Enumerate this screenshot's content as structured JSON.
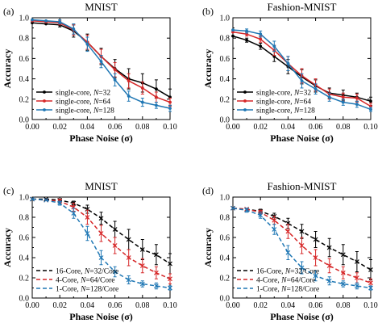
{
  "chart_data": [
    {
      "panel_label": "(a)",
      "title": "MNIST",
      "type": "line",
      "xlabel": "Phase Noise (σ)",
      "ylabel": "Accuracy",
      "xlim": [
        0.0,
        0.1
      ],
      "ylim": [
        0.0,
        1.0
      ],
      "xticks": [
        "0.00",
        "0.02",
        "0.04",
        "0.06",
        "0.08",
        "0.10"
      ],
      "yticks": [
        "0.0",
        "0.2",
        "0.4",
        "0.6",
        "0.8",
        "1.0"
      ],
      "grid": false,
      "legend_position": "bottom-left",
      "x": [
        0.0,
        0.01,
        0.02,
        0.03,
        0.04,
        0.05,
        0.06,
        0.07,
        0.08,
        0.09,
        0.1
      ],
      "series": [
        {
          "name": "single-core, N=32",
          "name_prefix": "single-core, ",
          "name_var": "N",
          "name_suffix": "=32",
          "color": "#000000",
          "dashed": false,
          "values": [
            0.95,
            0.94,
            0.93,
            0.87,
            0.76,
            0.62,
            0.5,
            0.4,
            0.36,
            0.3,
            0.22
          ],
          "errors": [
            0.01,
            0.01,
            0.02,
            0.06,
            0.08,
            0.08,
            0.09,
            0.1,
            0.09,
            0.09,
            0.08
          ]
        },
        {
          "name": "single-core, N=64",
          "name_prefix": "single-core, ",
          "name_var": "N",
          "name_suffix": "=64",
          "color": "#d62728",
          "dashed": false,
          "values": [
            0.97,
            0.96,
            0.95,
            0.88,
            0.76,
            0.62,
            0.49,
            0.38,
            0.31,
            0.22,
            0.17
          ],
          "errors": [
            0.01,
            0.01,
            0.02,
            0.05,
            0.07,
            0.07,
            0.07,
            0.07,
            0.06,
            0.05,
            0.04
          ]
        },
        {
          "name": "single-core, N=128",
          "name_prefix": "single-core, ",
          "name_var": "N",
          "name_suffix": "=128",
          "color": "#1f77b4",
          "dashed": false,
          "values": [
            0.98,
            0.97,
            0.96,
            0.89,
            0.74,
            0.57,
            0.39,
            0.23,
            0.17,
            0.14,
            0.11
          ],
          "errors": [
            0.01,
            0.01,
            0.02,
            0.05,
            0.07,
            0.06,
            0.06,
            0.05,
            0.04,
            0.03,
            0.03
          ]
        }
      ]
    },
    {
      "panel_label": "(b)",
      "title": "Fashion-MNIST",
      "type": "line",
      "xlabel": "Phase Noise (σ)",
      "ylabel": "Accuracy",
      "xlim": [
        0.0,
        0.1
      ],
      "ylim": [
        0.0,
        1.0
      ],
      "xticks": [
        "0.00",
        "0.02",
        "0.04",
        "0.06",
        "0.08",
        "0.10"
      ],
      "yticks": [
        "0.0",
        "0.2",
        "0.4",
        "0.6",
        "0.8",
        "1.0"
      ],
      "grid": false,
      "legend_position": "bottom-left",
      "x": [
        0.0,
        0.01,
        0.02,
        0.03,
        0.04,
        0.05,
        0.06,
        0.07,
        0.08,
        0.09,
        0.1
      ],
      "series": [
        {
          "name": "single-core, N=32",
          "name_prefix": "single-core, ",
          "name_var": "N",
          "name_suffix": "=32",
          "color": "#000000",
          "dashed": false,
          "values": [
            0.82,
            0.78,
            0.72,
            0.62,
            0.52,
            0.42,
            0.33,
            0.26,
            0.24,
            0.22,
            0.18
          ],
          "errors": [
            0.01,
            0.02,
            0.03,
            0.05,
            0.07,
            0.07,
            0.06,
            0.05,
            0.05,
            0.04,
            0.04
          ]
        },
        {
          "name": "single-core, N=64",
          "name_prefix": "single-core, ",
          "name_var": "N",
          "name_suffix": "=64",
          "color": "#d62728",
          "dashed": false,
          "values": [
            0.86,
            0.84,
            0.79,
            0.68,
            0.55,
            0.43,
            0.34,
            0.25,
            0.22,
            0.21,
            0.13
          ],
          "errors": [
            0.01,
            0.02,
            0.03,
            0.05,
            0.07,
            0.07,
            0.06,
            0.05,
            0.04,
            0.04,
            0.03
          ]
        },
        {
          "name": "single-core, N=128",
          "name_prefix": "single-core, ",
          "name_var": "N",
          "name_suffix": "=128",
          "color": "#1f77b4",
          "dashed": false,
          "values": [
            0.88,
            0.87,
            0.84,
            0.72,
            0.55,
            0.38,
            0.3,
            0.22,
            0.17,
            0.15,
            0.1
          ],
          "errors": [
            0.01,
            0.02,
            0.03,
            0.05,
            0.07,
            0.07,
            0.05,
            0.04,
            0.03,
            0.03,
            0.02
          ]
        }
      ]
    },
    {
      "panel_label": "(c)",
      "title": "MNIST",
      "type": "line",
      "xlabel": "Phase Noise (σ)",
      "ylabel": "Accuracy",
      "xlim": [
        0.0,
        0.1
      ],
      "ylim": [
        0.0,
        1.0
      ],
      "xticks": [
        "0.00",
        "0.02",
        "0.04",
        "0.06",
        "0.08",
        "0.10"
      ],
      "yticks": [
        "0.0",
        "0.2",
        "0.4",
        "0.6",
        "0.8",
        "1.0"
      ],
      "grid": false,
      "legend_position": "bottom-left",
      "x": [
        0.0,
        0.01,
        0.02,
        0.03,
        0.04,
        0.05,
        0.06,
        0.07,
        0.08,
        0.09,
        0.1
      ],
      "series": [
        {
          "name": "16-Core, N=32/Core",
          "name_prefix": "16-Core, ",
          "name_var": "N",
          "name_suffix": "=32/Core",
          "color": "#000000",
          "dashed": true,
          "values": [
            0.98,
            0.98,
            0.97,
            0.94,
            0.88,
            0.79,
            0.68,
            0.58,
            0.48,
            0.43,
            0.34
          ],
          "errors": [
            0.01,
            0.01,
            0.01,
            0.02,
            0.04,
            0.06,
            0.08,
            0.1,
            0.1,
            0.1,
            0.1
          ]
        },
        {
          "name": "4-Core, N=64/Core",
          "name_prefix": "4-Core, ",
          "name_var": "N",
          "name_suffix": "=64/Core",
          "color": "#d62728",
          "dashed": true,
          "values": [
            0.98,
            0.97,
            0.96,
            0.9,
            0.8,
            0.64,
            0.52,
            0.4,
            0.32,
            0.25,
            0.19
          ],
          "errors": [
            0.01,
            0.01,
            0.02,
            0.04,
            0.07,
            0.08,
            0.08,
            0.08,
            0.07,
            0.06,
            0.05
          ]
        },
        {
          "name": "1-Core, N=128/Core",
          "name_prefix": "1-Core, ",
          "name_var": "N",
          "name_suffix": "=128/Core",
          "color": "#1f77b4",
          "dashed": true,
          "values": [
            0.98,
            0.97,
            0.94,
            0.84,
            0.64,
            0.4,
            0.26,
            0.18,
            0.14,
            0.12,
            0.1
          ],
          "errors": [
            0.01,
            0.01,
            0.02,
            0.05,
            0.07,
            0.07,
            0.05,
            0.04,
            0.03,
            0.03,
            0.02
          ]
        }
      ]
    },
    {
      "panel_label": "(d)",
      "title": "Fashion-MNIST",
      "type": "line",
      "xlabel": "Phase Noise (σ)",
      "ylabel": "Accuracy",
      "xlim": [
        0.0,
        0.1
      ],
      "ylim": [
        0.0,
        1.0
      ],
      "xticks": [
        "0.00",
        "0.02",
        "0.04",
        "0.06",
        "0.08",
        "0.10"
      ],
      "yticks": [
        "0.0",
        "0.2",
        "0.4",
        "0.6",
        "0.8",
        "1.0"
      ],
      "grid": false,
      "legend_position": "bottom-left",
      "x": [
        0.0,
        0.01,
        0.02,
        0.03,
        0.04,
        0.05,
        0.06,
        0.07,
        0.08,
        0.09,
        0.1
      ],
      "series": [
        {
          "name": "16-Core, N=32/Core",
          "name_prefix": "16-Core, ",
          "name_var": "N",
          "name_suffix": "=32/Core",
          "color": "#000000",
          "dashed": true,
          "values": [
            0.89,
            0.88,
            0.86,
            0.81,
            0.74,
            0.66,
            0.58,
            0.5,
            0.43,
            0.36,
            0.28
          ],
          "errors": [
            0.01,
            0.01,
            0.02,
            0.03,
            0.05,
            0.07,
            0.08,
            0.09,
            0.1,
            0.1,
            0.1
          ]
        },
        {
          "name": "4-Core, N=64/Core",
          "name_prefix": "4-Core, ",
          "name_var": "N",
          "name_suffix": "=64/Core",
          "color": "#d62728",
          "dashed": true,
          "values": [
            0.89,
            0.88,
            0.85,
            0.77,
            0.66,
            0.52,
            0.4,
            0.32,
            0.25,
            0.2,
            0.15
          ],
          "errors": [
            0.01,
            0.01,
            0.02,
            0.04,
            0.07,
            0.08,
            0.08,
            0.07,
            0.06,
            0.05,
            0.04
          ]
        },
        {
          "name": "1-Core, N=128/Core",
          "name_prefix": "1-Core, ",
          "name_var": "N",
          "name_suffix": "=128/Core",
          "color": "#1f77b4",
          "dashed": true,
          "values": [
            0.89,
            0.87,
            0.82,
            0.68,
            0.45,
            0.3,
            0.22,
            0.17,
            0.14,
            0.12,
            0.1
          ],
          "errors": [
            0.01,
            0.02,
            0.03,
            0.05,
            0.07,
            0.06,
            0.05,
            0.04,
            0.03,
            0.03,
            0.02
          ]
        }
      ]
    }
  ]
}
